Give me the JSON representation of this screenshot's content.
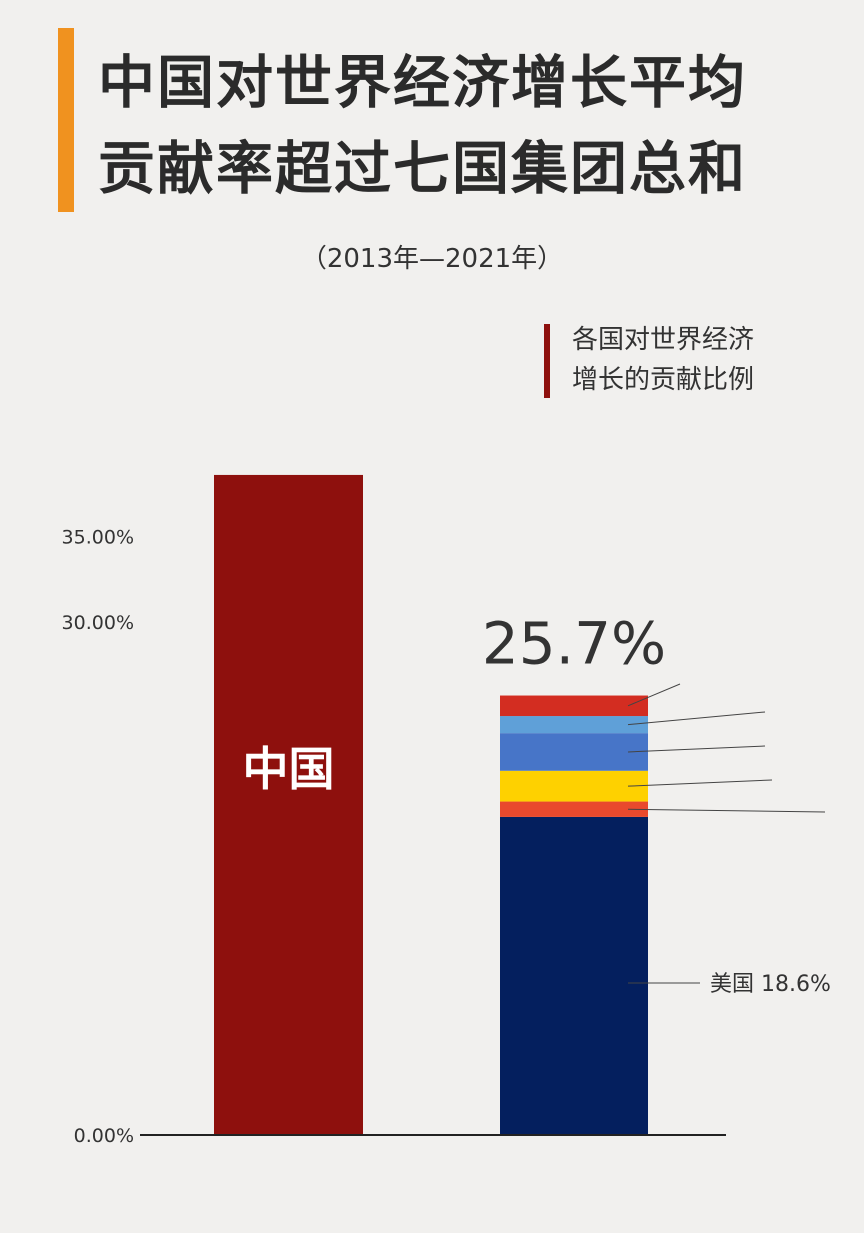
{
  "header": {
    "title_line1": "中国对世界经济增长平均",
    "title_line2": "贡献率超过七国集团总和",
    "subtitle": "（2013年—2021年）",
    "accent_color": "#f0921f"
  },
  "legend": {
    "line1": "各国对世界经济",
    "line2": "增长的贡献比例",
    "color": "#8e100d"
  },
  "chart_data": {
    "type": "bar",
    "stacked": true,
    "y_ticks": [
      {
        "value": 0,
        "label": "0.00%"
      },
      {
        "value": 30,
        "label": "30.00%"
      },
      {
        "value": 35,
        "label": "35.00%"
      }
    ],
    "ylim": [
      0,
      38.6
    ],
    "grid": false,
    "bars": [
      {
        "category": "中国",
        "label": "中国",
        "total": 38.6,
        "color": "#8e100d",
        "segments": [
          {
            "value": 38.6,
            "color": "#8e100d"
          }
        ]
      },
      {
        "category": "七国集团",
        "total_label": "25.7%",
        "total": 25.7,
        "segments": [
          {
            "name": "美国",
            "value": 18.6,
            "label": "美国 18.6%",
            "color": "#041f5e"
          },
          {
            "value": 0.9,
            "color": "#e9492d"
          },
          {
            "value": 1.8,
            "color": "#fed100"
          },
          {
            "value": 2.2,
            "color": "#4775c8"
          },
          {
            "value": 1.0,
            "color": "#5fa0d8"
          },
          {
            "value": 1.2,
            "color": "#d32d21"
          }
        ]
      }
    ]
  }
}
